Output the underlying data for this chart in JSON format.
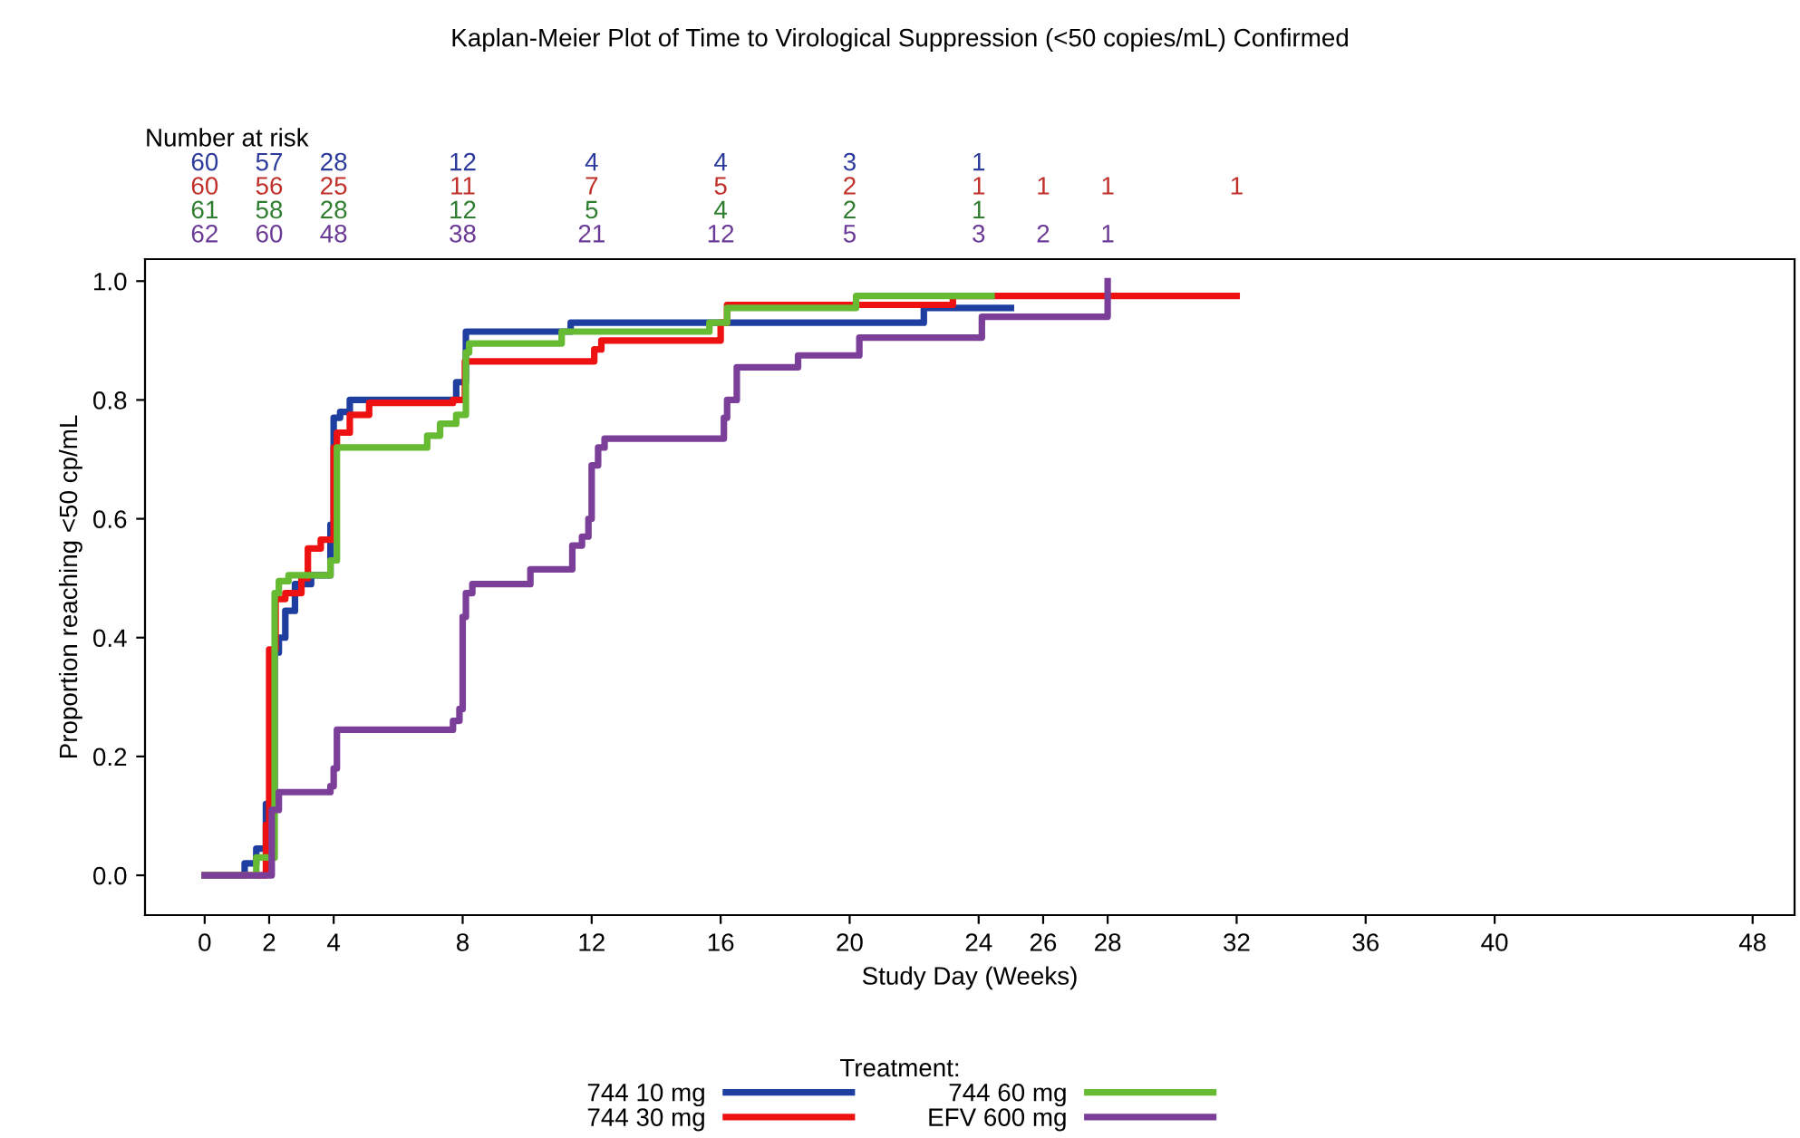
{
  "chart_data": [
    {
      "type": "other",
      "title": "Kaplan-Meier Plot of Time to Virological Suppression (<50 copies/mL) Confirmed",
      "subtitle": "Number at risk",
      "colors": [
        "#2b3a9b",
        "#c0302a",
        "#2f7d2f",
        "#6b3a96"
      ],
      "annotations": [
        "60 57 28 12 4 4 3 1",
        "60 56 25 11 7 5 2 1 1 1 1",
        "61 58 28 12 5 4 2 1",
        "62 60 48 38 21 12 5 3 2 1"
      ]
    },
    {
      "type": "step",
      "xlabel": "Study Day (Weeks)",
      "ylabel": "Proportion reaching <50 cp/mL",
      "legend_title": "Treatment:",
      "legend": "bottom",
      "xlim": [
        -1.85,
        49.3
      ],
      "ylim": [
        -0.067,
        1.037
      ],
      "xticks": [
        0,
        2,
        4,
        8,
        12,
        16,
        20,
        24,
        26,
        28,
        32,
        36,
        40,
        48
      ],
      "yticks": [
        {
          "value": 0,
          "label": "0.0"
        },
        {
          "value": 0.2,
          "label": "0.2"
        },
        {
          "value": 0.4,
          "label": "0.4"
        },
        {
          "value": 0.6,
          "label": "0.6"
        },
        {
          "value": 0.8,
          "label": "0.8"
        },
        {
          "value": 1,
          "label": "1.0"
        }
      ],
      "series": [
        {
          "name": "744 10 mg",
          "color": "#1f3fa0",
          "x": [
            0,
            1.24,
            1.6,
            1.9,
            2.17,
            2.3,
            2.5,
            2.8,
            3.3,
            3.9,
            4.0,
            4.2,
            4.5,
            7.8,
            8.1,
            11.35,
            22.3,
            25.0
          ],
          "values": [
            0,
            0.02,
            0.045,
            0.12,
            0.375,
            0.4,
            0.445,
            0.49,
            0.505,
            0.59,
            0.77,
            0.78,
            0.8,
            0.83,
            0.915,
            0.93,
            0.955,
            0.955
          ]
        },
        {
          "name": "744 30 mg",
          "color": "#ee1111",
          "x": [
            0,
            1.9,
            2.0,
            2.2,
            2.5,
            3.0,
            3.2,
            3.6,
            4.0,
            4.1,
            4.5,
            5.1,
            7.7,
            8.07,
            12.08,
            12.3,
            16.0,
            16.2,
            23.2,
            32.0
          ],
          "values": [
            0,
            0.085,
            0.38,
            0.465,
            0.475,
            0.5,
            0.55,
            0.565,
            0.72,
            0.745,
            0.775,
            0.795,
            0.8,
            0.865,
            0.885,
            0.9,
            0.93,
            0.96,
            0.975,
            0.975
          ]
        },
        {
          "name": "744 60 mg",
          "color": "#66bb33",
          "x": [
            0,
            1.6,
            2.17,
            2.3,
            2.6,
            3.9,
            4.1,
            6.9,
            7.3,
            7.8,
            8.1,
            8.2,
            11.07,
            15.65,
            16.2,
            20.2,
            24.4
          ],
          "values": [
            0,
            0.03,
            0.475,
            0.495,
            0.505,
            0.53,
            0.72,
            0.74,
            0.76,
            0.775,
            0.88,
            0.895,
            0.915,
            0.93,
            0.955,
            0.975,
            0.975
          ]
        },
        {
          "name": "EFV 600 mg",
          "color": "#7b3f9a",
          "x": [
            0,
            2.08,
            2.3,
            3.9,
            4.0,
            4.1,
            7.7,
            7.9,
            8.0,
            8.1,
            8.3,
            10.1,
            11.35,
            11.4,
            11.7,
            11.9,
            12.0,
            12.2,
            12.4,
            16.1,
            16.2,
            16.5,
            18.4,
            20.3,
            24.1,
            28.0
          ],
          "values": [
            0,
            0.11,
            0.14,
            0.15,
            0.18,
            0.245,
            0.26,
            0.28,
            0.435,
            0.475,
            0.49,
            0.515,
            0.515,
            0.555,
            0.57,
            0.6,
            0.69,
            0.72,
            0.735,
            0.77,
            0.8,
            0.855,
            0.875,
            0.905,
            0.94,
            1.0
          ]
        }
      ]
    }
  ]
}
